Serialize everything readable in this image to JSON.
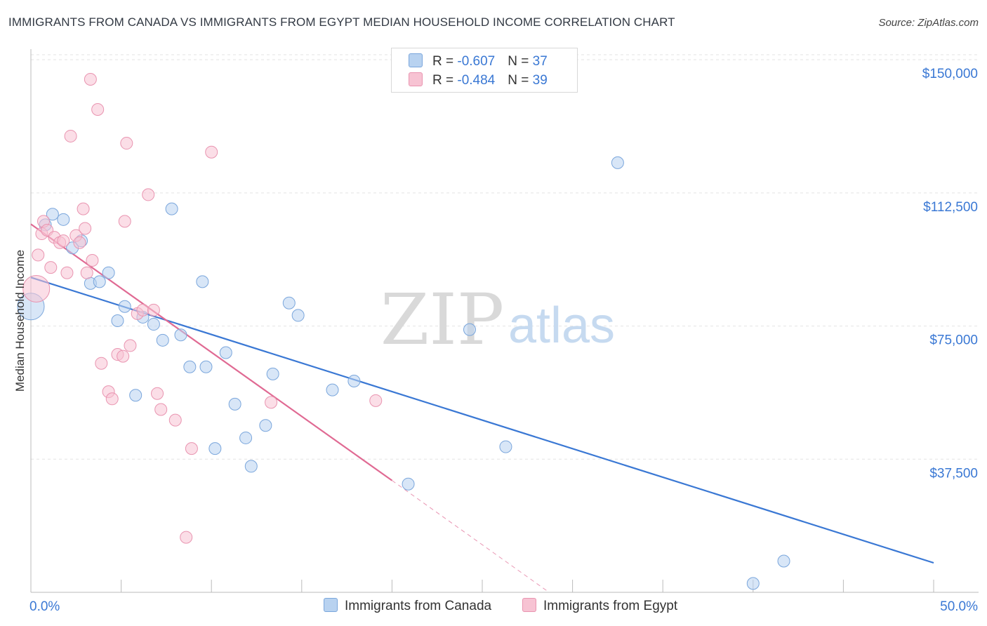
{
  "header": {
    "title": "IMMIGRANTS FROM CANADA VS IMMIGRANTS FROM EGYPT MEDIAN HOUSEHOLD INCOME CORRELATION CHART",
    "source": "Source: ZipAtlas.com"
  },
  "watermark": {
    "zip": "ZIP",
    "atlas": "atlas"
  },
  "legend": {
    "series": [
      {
        "r_label": "R = ",
        "r_value": "-0.607",
        "n_label": "N = ",
        "n_value": "37"
      },
      {
        "r_label": "R = ",
        "r_value": "-0.484",
        "n_label": "N = ",
        "n_value": "39"
      }
    ]
  },
  "colors": {
    "canada_fill": "#b8d2f0",
    "canada_stroke": "#7aa6dc",
    "canada_line": "#3a78d4",
    "egypt_fill": "#f7c3d3",
    "egypt_stroke": "#e994b0",
    "egypt_line": "#e06a93",
    "axis_label": "#3a78d4",
    "grid": "#e3e3e3"
  },
  "chart_data": {
    "type": "scatter",
    "title": "IMMIGRANTS FROM CANADA VS IMMIGRANTS FROM EGYPT MEDIAN HOUSEHOLD INCOME CORRELATION CHART",
    "xlabel": "",
    "ylabel": "Median Household Income",
    "xlim": [
      0,
      50
    ],
    "ylim": [
      0,
      153000
    ],
    "x_tick_labels": [
      "0.0%",
      "50.0%"
    ],
    "y_ticks": [
      37500,
      75000,
      112500,
      150000
    ],
    "y_tick_labels": [
      "$37,500",
      "$75,000",
      "$112,500",
      "$150,000"
    ],
    "grid": true,
    "legend_position": "top-center",
    "series": [
      {
        "name": "Immigrants from Canada",
        "trend": {
          "x0": 0,
          "y0": 88700,
          "x1": 50,
          "y1": 8300
        },
        "points": [
          {
            "x": 0.0,
            "y": 80500,
            "big": true
          },
          {
            "x": 0.8,
            "y": 103500
          },
          {
            "x": 1.2,
            "y": 106500
          },
          {
            "x": 1.8,
            "y": 105000
          },
          {
            "x": 2.3,
            "y": 97000
          },
          {
            "x": 2.8,
            "y": 99000
          },
          {
            "x": 3.3,
            "y": 87000
          },
          {
            "x": 3.8,
            "y": 87500
          },
          {
            "x": 4.3,
            "y": 90000
          },
          {
            "x": 4.8,
            "y": 76500
          },
          {
            "x": 5.2,
            "y": 80500
          },
          {
            "x": 5.8,
            "y": 55500
          },
          {
            "x": 6.2,
            "y": 77500
          },
          {
            "x": 6.8,
            "y": 75500
          },
          {
            "x": 7.3,
            "y": 71000
          },
          {
            "x": 7.8,
            "y": 108000
          },
          {
            "x": 8.3,
            "y": 72500
          },
          {
            "x": 8.8,
            "y": 63500
          },
          {
            "x": 9.5,
            "y": 87500
          },
          {
            "x": 9.7,
            "y": 63500
          },
          {
            "x": 10.2,
            "y": 40500
          },
          {
            "x": 10.8,
            "y": 67500
          },
          {
            "x": 11.3,
            "y": 53000
          },
          {
            "x": 11.9,
            "y": 43500
          },
          {
            "x": 12.2,
            "y": 35500
          },
          {
            "x": 13.0,
            "y": 47000
          },
          {
            "x": 14.3,
            "y": 81500
          },
          {
            "x": 14.8,
            "y": 78000
          },
          {
            "x": 13.4,
            "y": 61500
          },
          {
            "x": 16.7,
            "y": 57000
          },
          {
            "x": 17.9,
            "y": 59500
          },
          {
            "x": 20.9,
            "y": 30500
          },
          {
            "x": 24.3,
            "y": 74000
          },
          {
            "x": 26.3,
            "y": 41000
          },
          {
            "x": 32.5,
            "y": 121000
          },
          {
            "x": 40.0,
            "y": 2500
          },
          {
            "x": 41.7,
            "y": 8800
          }
        ]
      },
      {
        "name": "Immigrants from Egypt",
        "trend": {
          "x0": 0,
          "y0": 103700,
          "x1": 20,
          "y1": 31500
        },
        "trend_dashed": {
          "x0": 20,
          "y0": 31500,
          "x1": 28.7,
          "y1": 0
        },
        "points": [
          {
            "x": 0.3,
            "y": 85500,
            "big": true
          },
          {
            "x": 0.4,
            "y": 95000
          },
          {
            "x": 0.6,
            "y": 101000
          },
          {
            "x": 0.7,
            "y": 104500
          },
          {
            "x": 0.9,
            "y": 102000
          },
          {
            "x": 1.1,
            "y": 91500
          },
          {
            "x": 1.3,
            "y": 100000
          },
          {
            "x": 1.6,
            "y": 98500
          },
          {
            "x": 1.8,
            "y": 99000
          },
          {
            "x": 2.0,
            "y": 90000
          },
          {
            "x": 2.2,
            "y": 128500
          },
          {
            "x": 2.5,
            "y": 100500
          },
          {
            "x": 2.7,
            "y": 98500
          },
          {
            "x": 2.9,
            "y": 108000
          },
          {
            "x": 3.0,
            "y": 102500
          },
          {
            "x": 3.1,
            "y": 90000
          },
          {
            "x": 3.3,
            "y": 144500
          },
          {
            "x": 3.4,
            "y": 93500
          },
          {
            "x": 3.7,
            "y": 136000
          },
          {
            "x": 3.9,
            "y": 64500
          },
          {
            "x": 4.3,
            "y": 56500
          },
          {
            "x": 4.5,
            "y": 54500
          },
          {
            "x": 4.8,
            "y": 67000
          },
          {
            "x": 5.1,
            "y": 66500
          },
          {
            "x": 5.2,
            "y": 104500
          },
          {
            "x": 5.3,
            "y": 126500
          },
          {
            "x": 5.5,
            "y": 69500
          },
          {
            "x": 5.9,
            "y": 78500
          },
          {
            "x": 6.2,
            "y": 79500
          },
          {
            "x": 6.5,
            "y": 112000
          },
          {
            "x": 6.8,
            "y": 79500
          },
          {
            "x": 7.0,
            "y": 56000
          },
          {
            "x": 7.2,
            "y": 51500
          },
          {
            "x": 8.0,
            "y": 48500
          },
          {
            "x": 8.6,
            "y": 15500
          },
          {
            "x": 8.9,
            "y": 40500
          },
          {
            "x": 10.0,
            "y": 124000
          },
          {
            "x": 13.3,
            "y": 53500
          },
          {
            "x": 19.1,
            "y": 54000
          }
        ]
      }
    ]
  },
  "bottom_legend": {
    "canada": "Immigrants from Canada",
    "egypt": "Immigrants from Egypt"
  }
}
